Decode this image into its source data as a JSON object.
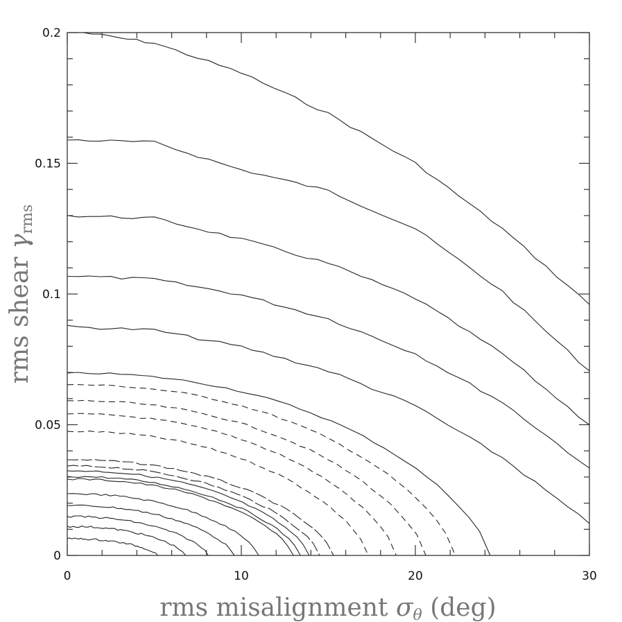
{
  "chart_data": {
    "type": "contour",
    "title": "",
    "xlabel": {
      "main": "rms misalignment ",
      "symbol": "σ",
      "sub": "θ",
      "unit": " (deg)"
    },
    "ylabel": {
      "main": "rms shear ",
      "symbol": "γ",
      "sub": "rms"
    },
    "xlim": [
      0,
      30
    ],
    "ylim": [
      0,
      0.2
    ],
    "x_ticks": [
      {
        "v": 0,
        "label": "0"
      },
      {
        "v": 10,
        "label": "10"
      },
      {
        "v": 20,
        "label": "20"
      },
      {
        "v": 30,
        "label": "30"
      }
    ],
    "y_ticks": [
      {
        "v": 0,
        "label": "0"
      },
      {
        "v": 0.05,
        "label": "0.05"
      },
      {
        "v": 0.1,
        "label": "0.1"
      },
      {
        "v": 0.15,
        "label": "0.15"
      },
      {
        "v": 0.2,
        "label": "0.2"
      }
    ],
    "x_minor_step": 2,
    "y_minor_step": 0.01,
    "grid": false,
    "upper_contours": [
      {
        "style": "solid",
        "points": [
          [
            0.9,
            0.2
          ],
          [
            5,
            0.196
          ],
          [
            10,
            0.1846
          ],
          [
            15,
            0.169
          ],
          [
            20,
            0.15
          ],
          [
            25,
            0.125
          ],
          [
            30,
            0.096
          ]
        ]
      },
      {
        "style": "solid",
        "points": [
          [
            0,
            0.159
          ],
          [
            5,
            0.158
          ],
          [
            10,
            0.1475
          ],
          [
            15,
            0.1395
          ],
          [
            20,
            0.125
          ],
          [
            25,
            0.101
          ],
          [
            30,
            0.0706
          ]
        ]
      },
      {
        "style": "solid",
        "points": [
          [
            0,
            0.13
          ],
          [
            5,
            0.129
          ],
          [
            10,
            0.121
          ],
          [
            15,
            0.1117
          ],
          [
            20,
            0.0984
          ],
          [
            25,
            0.0772
          ],
          [
            30,
            0.05
          ]
        ]
      },
      {
        "style": "solid",
        "points": [
          [
            0,
            0.107
          ],
          [
            5,
            0.1056
          ],
          [
            10,
            0.0997
          ],
          [
            15,
            0.0905
          ],
          [
            20,
            0.0772
          ],
          [
            25,
            0.0586
          ],
          [
            30,
            0.0334
          ]
        ]
      },
      {
        "style": "solid",
        "points": [
          [
            0,
            0.0875
          ],
          [
            5,
            0.0862
          ],
          [
            10,
            0.0798
          ],
          [
            15,
            0.0706
          ],
          [
            20,
            0.0573
          ],
          [
            25,
            0.0374
          ],
          [
            30,
            0.0122
          ]
        ]
      }
    ],
    "lower_contours": [
      {
        "style": "solid",
        "y_intercept": 0.0698,
        "x_intercept": 24.3
      },
      {
        "style": "dashed",
        "y_intercept": 0.0653,
        "x_intercept": 22.3
      },
      {
        "style": "dashed",
        "y_intercept": 0.0592,
        "x_intercept": 20.6
      },
      {
        "style": "dashed",
        "y_intercept": 0.0541,
        "x_intercept": 18.9
      },
      {
        "style": "dashed",
        "y_intercept": 0.0475,
        "x_intercept": 17.3
      },
      {
        "style": "longdash",
        "y_intercept": 0.0366,
        "x_intercept": 15.3
      },
      {
        "style": "longdash",
        "y_intercept": 0.0342,
        "x_intercept": 14.5
      },
      {
        "style": "solid",
        "y_intercept": 0.0324,
        "x_intercept": 13.9
      },
      {
        "style": "solid",
        "y_intercept": 0.0302,
        "x_intercept": 13.4
      },
      {
        "style": "solid",
        "y_intercept": 0.0292,
        "x_intercept": 13.0
      },
      {
        "style": "solid",
        "y_intercept": 0.0236,
        "x_intercept": 11.0
      },
      {
        "style": "solid",
        "y_intercept": 0.0191,
        "x_intercept": 9.6
      },
      {
        "style": "solid",
        "y_intercept": 0.0149,
        "x_intercept": 8.1
      },
      {
        "style": "solid",
        "y_intercept": 0.0111,
        "x_intercept": 6.8
      },
      {
        "style": "solid",
        "y_intercept": 0.0064,
        "x_intercept": 5.2
      }
    ],
    "line_color": "#222222"
  }
}
